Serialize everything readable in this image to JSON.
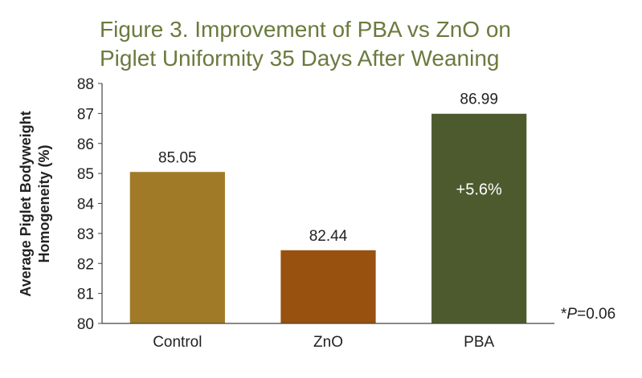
{
  "chart_data": {
    "type": "bar",
    "title_lines": [
      "Figure 3. Improvement of PBA vs ZnO on",
      "Piglet Uniformity 35 Days After Weaning"
    ],
    "ylabel_lines": [
      "Average Piglet Bodyweight",
      "Homogeneity (%)"
    ],
    "xlabel": "",
    "categories": [
      "Control",
      "ZnO",
      "PBA"
    ],
    "values": [
      85.05,
      82.44,
      86.99
    ],
    "value_labels": [
      "85.05",
      "82.44",
      "86.99"
    ],
    "colors": [
      "#a07a26",
      "#98510f",
      "#4d5a2e"
    ],
    "ylim": [
      80,
      88
    ],
    "yticks": [
      "80",
      "81",
      "82",
      "83",
      "84",
      "85",
      "86",
      "87",
      "88"
    ],
    "inner_annotation": {
      "category": "PBA",
      "text": "+5.6%"
    },
    "footnote": {
      "prefix": "*",
      "variable": "P",
      "suffix": "=0.06"
    },
    "grid": false,
    "legend": "none"
  }
}
